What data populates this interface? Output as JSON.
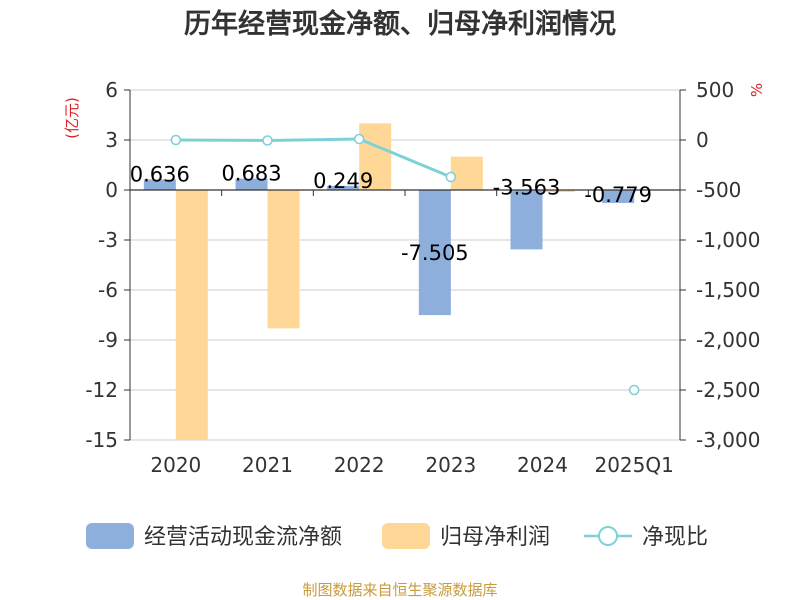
{
  "chart_data": {
    "type": "bar",
    "title": "历年经营现金净额、归母净利润情况",
    "categories": [
      "2020",
      "2021",
      "2022",
      "2023",
      "2024",
      "2025Q1"
    ],
    "y_left": {
      "unit_label": "(亿元)",
      "ylim": [
        -15,
        6
      ],
      "ticks": [
        "6",
        "3",
        "0",
        "-3",
        "-6",
        "-9",
        "-12",
        "-15"
      ]
    },
    "y_right": {
      "unit_label": "%",
      "ylim": [
        -3000,
        500
      ],
      "ticks": [
        "500",
        "0",
        "-500",
        "-1,000",
        "-1,500",
        "-2,000",
        "-2,500",
        "-3,000"
      ]
    },
    "series": [
      {
        "name": "经营活动现金流净额",
        "type": "bar",
        "axis": "left",
        "color": "#8EAEDB",
        "values": [
          0.636,
          0.683,
          0.249,
          -7.505,
          -3.563,
          -0.779
        ],
        "value_labels": [
          "0.636",
          "0.683",
          "0.249",
          "-7.505",
          "-3.563",
          "-0.779"
        ]
      },
      {
        "name": "归母净利润",
        "type": "bar",
        "axis": "left",
        "color": "#FFD796",
        "values": [
          -15.0,
          -8.3,
          4.0,
          2.0,
          -0.1,
          null
        ]
      },
      {
        "name": "净现比",
        "type": "line",
        "axis": "right",
        "color": "#7FD1D8",
        "values": [
          0,
          -5,
          10,
          -370,
          null,
          -2500
        ]
      }
    ],
    "grid": true,
    "legend_position": "bottom"
  },
  "source_text": "制图数据来自恒生聚源数据库",
  "colors": {
    "title": "#333333",
    "unit": "#E02020",
    "source": "#C89B3C",
    "grid": "#CCCCCC",
    "axis": "#333333"
  }
}
